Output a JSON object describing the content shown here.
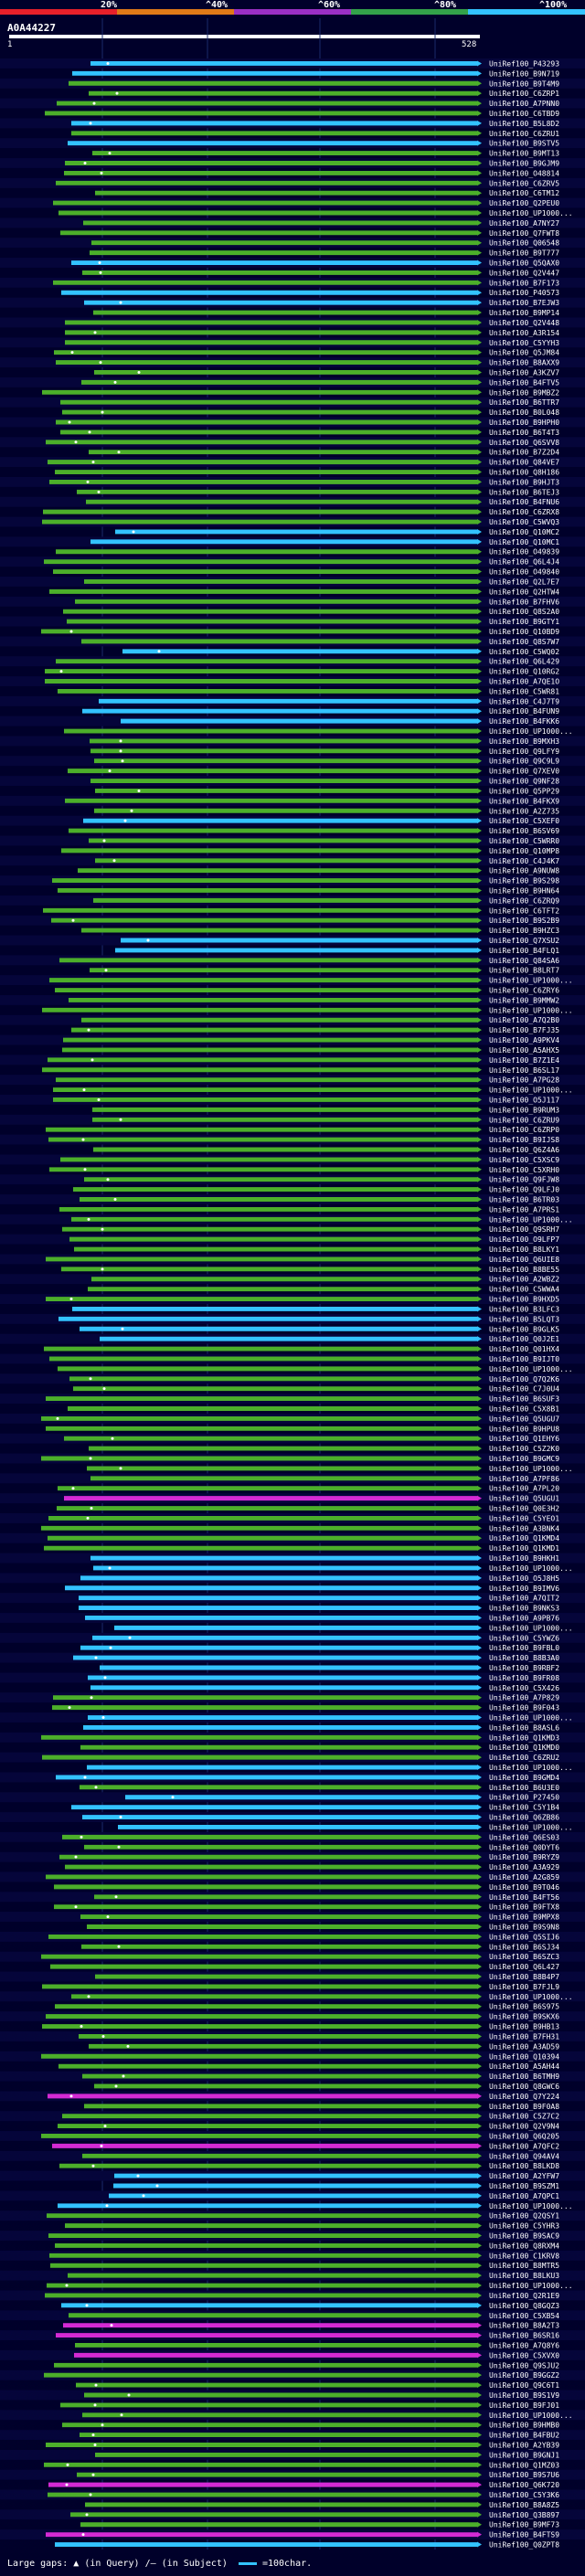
{
  "scale": {
    "labels": [
      "20%",
      "^40%",
      "^60%",
      "^80%",
      "^100%"
    ],
    "colors": [
      "#e8202a",
      "#e07a18",
      "#9a2fc4",
      "#33a24a",
      "#33c3ff"
    ]
  },
  "query": {
    "id": "A0A44227",
    "start": "1",
    "end": "528"
  },
  "colors": {
    "background": "#00002a",
    "cyan": "#33c3ff",
    "green": "#4caf2a",
    "magenta": "#d42ad4",
    "grid": "#1a2a6a"
  },
  "hits": [
    {
      "label": "UniRef100_P43293",
      "color": "cyan"
    },
    {
      "label": "UniRef100_B9N719",
      "color": "cyan"
    },
    {
      "label": "UniRef100_B9T4M9",
      "color": "green"
    },
    {
      "label": "UniRef100_C6ZRP1",
      "color": "green"
    },
    {
      "label": "UniRef100_A7PNN0",
      "color": "green"
    },
    {
      "label": "UniRef100_C6TBD9",
      "color": "green"
    },
    {
      "label": "UniRef100_B5L8D2",
      "color": "cyan"
    },
    {
      "label": "UniRef100_C6ZRU1",
      "color": "green"
    },
    {
      "label": "UniRef100_B9STV5",
      "color": "cyan"
    },
    {
      "label": "UniRef100_B9MT13",
      "color": "green"
    },
    {
      "label": "UniRef100_B9GJM9",
      "color": "green"
    },
    {
      "label": "UniRef100_O48814",
      "color": "green"
    },
    {
      "label": "UniRef100_C6ZRV5",
      "color": "green"
    },
    {
      "label": "UniRef100_C6TM12",
      "color": "green"
    },
    {
      "label": "UniRef100_Q2PEU0",
      "color": "green"
    },
    {
      "label": "UniRef100_UP1000...",
      "color": "green"
    },
    {
      "label": "UniRef100_A7NY27",
      "color": "green"
    },
    {
      "label": "UniRef100_Q7FWT8",
      "color": "green"
    },
    {
      "label": "UniRef100_Q06548",
      "color": "green"
    },
    {
      "label": "UniRef100_B9T777",
      "color": "green"
    },
    {
      "label": "UniRef100_Q5QAX0",
      "color": "cyan"
    },
    {
      "label": "UniRef100_Q2V447",
      "color": "green"
    },
    {
      "label": "UniRef100_B7F173",
      "color": "green"
    },
    {
      "label": "UniRef100_P40573",
      "color": "cyan"
    },
    {
      "label": "UniRef100_B7EJW3",
      "color": "cyan"
    },
    {
      "label": "UniRef100_B9MP14",
      "color": "green"
    },
    {
      "label": "UniRef100_Q2V448",
      "color": "green"
    },
    {
      "label": "UniRef100_A3R154",
      "color": "green"
    },
    {
      "label": "UniRef100_C5YYH3",
      "color": "green"
    },
    {
      "label": "UniRef100_Q5JM84",
      "color": "green"
    },
    {
      "label": "UniRef100_B8AXX9",
      "color": "green"
    },
    {
      "label": "UniRef100_A3KZV7",
      "color": "green"
    },
    {
      "label": "UniRef100_B4FTV5",
      "color": "green"
    },
    {
      "label": "UniRef100_B9MBZ2",
      "color": "green"
    },
    {
      "label": "UniRef100_B6TTR7",
      "color": "green"
    },
    {
      "label": "UniRef100_B0L048",
      "color": "green"
    },
    {
      "label": "UniRef100_B9HPH0",
      "color": "green"
    },
    {
      "label": "UniRef100_B6T4T3",
      "color": "green"
    },
    {
      "label": "UniRef100_Q6SVV8",
      "color": "green"
    },
    {
      "label": "UniRef100_B7Z2D4",
      "color": "green"
    },
    {
      "label": "UniRef100_Q84VE7",
      "color": "green"
    },
    {
      "label": "UniRef100_Q8H186",
      "color": "green"
    },
    {
      "label": "UniRef100_B9HJT3",
      "color": "green"
    },
    {
      "label": "UniRef100_B6TEJ3",
      "color": "green"
    },
    {
      "label": "UniRef100_B4FNU6",
      "color": "green"
    },
    {
      "label": "UniRef100_C6ZRX8",
      "color": "green"
    },
    {
      "label": "UniRef100_C5WVQ3",
      "color": "green"
    },
    {
      "label": "UniRef100_Q10MC2",
      "color": "cyan"
    },
    {
      "label": "UniRef100_Q10MC1",
      "color": "cyan"
    },
    {
      "label": "UniRef100_O49839",
      "color": "green"
    },
    {
      "label": "UniRef100_Q6L4J4",
      "color": "green"
    },
    {
      "label": "UniRef100_O49840",
      "color": "green"
    },
    {
      "label": "UniRef100_Q2L7E7",
      "color": "green"
    },
    {
      "label": "UniRef100_Q2HTW4",
      "color": "green"
    },
    {
      "label": "UniRef100_B7FHV6",
      "color": "green"
    },
    {
      "label": "UniRef100_Q8S2A0",
      "color": "green"
    },
    {
      "label": "UniRef100_B9GTY1",
      "color": "green"
    },
    {
      "label": "UniRef100_Q10BD9",
      "color": "green"
    },
    {
      "label": "UniRef100_Q8S7W7",
      "color": "green"
    },
    {
      "label": "UniRef100_C5WQ02",
      "color": "cyan"
    },
    {
      "label": "UniRef100_Q6L429",
      "color": "green"
    },
    {
      "label": "UniRef100_Q10RG2",
      "color": "green"
    },
    {
      "label": "UniRef100_A7QE1O",
      "color": "green"
    },
    {
      "label": "UniRef100_C5WR81",
      "color": "green"
    },
    {
      "label": "UniRef100_C4J7T9",
      "color": "cyan"
    },
    {
      "label": "UniRef100_B4FUN9",
      "color": "cyan"
    },
    {
      "label": "UniRef100_B4FKK6",
      "color": "cyan"
    },
    {
      "label": "UniRef100_UP1000...",
      "color": "green"
    },
    {
      "label": "UniRef100_B9MXH3",
      "color": "green"
    },
    {
      "label": "UniRef100_Q9LFY9",
      "color": "green"
    },
    {
      "label": "UniRef100_Q9C9L9",
      "color": "green"
    },
    {
      "label": "UniRef100_Q7XEV0",
      "color": "green"
    },
    {
      "label": "UniRef100_Q9NF28",
      "color": "green"
    },
    {
      "label": "UniRef100_Q5PP29",
      "color": "green"
    },
    {
      "label": "UniRef100_B4FKX9",
      "color": "green"
    },
    {
      "label": "UniRef100_A2Z735",
      "color": "green"
    },
    {
      "label": "UniRef100_C5XEF0",
      "color": "cyan"
    },
    {
      "label": "UniRef100_B6SV69",
      "color": "green"
    },
    {
      "label": "UniRef100_C5WRR0",
      "color": "green"
    },
    {
      "label": "UniRef100_Q10MP8",
      "color": "green"
    },
    {
      "label": "UniRef100_C4J4K7",
      "color": "green"
    },
    {
      "label": "UniRef100_A9NUW8",
      "color": "green"
    },
    {
      "label": "UniRef100_B9S298",
      "color": "green"
    },
    {
      "label": "UniRef100_B9HN64",
      "color": "green"
    },
    {
      "label": "UniRef100_C6ZRQ9",
      "color": "green"
    },
    {
      "label": "UniRef100_C6TFT2",
      "color": "green"
    },
    {
      "label": "UniRef100_B9S2B9",
      "color": "green"
    },
    {
      "label": "UniRef100_B9HZC3",
      "color": "green"
    },
    {
      "label": "UniRef100_Q7XSU2",
      "color": "cyan"
    },
    {
      "label": "UniRef100_B4FLQ1",
      "color": "cyan"
    },
    {
      "label": "UniRef100_Q84SA6",
      "color": "green"
    },
    {
      "label": "UniRef100_B8LRT7",
      "color": "green"
    },
    {
      "label": "UniRef100_UP1000...",
      "color": "green"
    },
    {
      "label": "UniRef100_C6ZRY6",
      "color": "green"
    },
    {
      "label": "UniRef100_B9MMW2",
      "color": "green"
    },
    {
      "label": "UniRef100_UP1000...",
      "color": "green"
    },
    {
      "label": "UniRef100_A7Q2B0",
      "color": "green"
    },
    {
      "label": "UniRef100_B7FJ35",
      "color": "green"
    },
    {
      "label": "UniRef100_A9PKV4",
      "color": "green"
    },
    {
      "label": "UniRef100_A5AHX5",
      "color": "green"
    },
    {
      "label": "UniRef100_B7Z1E4",
      "color": "green"
    },
    {
      "label": "UniRef100_B6SL17",
      "color": "green"
    },
    {
      "label": "UniRef100_A7PG28",
      "color": "green"
    },
    {
      "label": "UniRef100_UP1000...",
      "color": "green"
    },
    {
      "label": "UniRef100_O5J117",
      "color": "green"
    },
    {
      "label": "UniRef100_B9RUM3",
      "color": "green"
    },
    {
      "label": "UniRef100_C6ZRU9",
      "color": "green"
    },
    {
      "label": "UniRef100_C6ZRP0",
      "color": "green"
    },
    {
      "label": "UniRef100_B9IJS8",
      "color": "green"
    },
    {
      "label": "UniRef100_Q6Z4A6",
      "color": "green"
    },
    {
      "label": "UniRef100_C5XSC9",
      "color": "green"
    },
    {
      "label": "UniRef100_C5XRH0",
      "color": "green"
    },
    {
      "label": "UniRef100_Q9FJW8",
      "color": "green"
    },
    {
      "label": "UniRef100_Q9LFJ0",
      "color": "green"
    },
    {
      "label": "UniRef100_B6TR03",
      "color": "green"
    },
    {
      "label": "UniRef100_A7PRS1",
      "color": "green"
    },
    {
      "label": "UniRef100_UP1000...",
      "color": "green"
    },
    {
      "label": "UniRef100_Q9SRH7",
      "color": "green"
    },
    {
      "label": "UniRef100_O9LFP7",
      "color": "green"
    },
    {
      "label": "UniRef100_B8LKY1",
      "color": "green"
    },
    {
      "label": "UniRef100_Q6UIE8",
      "color": "green"
    },
    {
      "label": "UniRef100_B8BE55",
      "color": "green"
    },
    {
      "label": "UniRef100_A2WBZ2",
      "color": "green"
    },
    {
      "label": "UniRef100_C5WWA4",
      "color": "green"
    },
    {
      "label": "UniRef100_B9HXD5",
      "color": "green"
    },
    {
      "label": "UniRef100_B3LFC3",
      "color": "cyan"
    },
    {
      "label": "UniRef100_B5LQT3",
      "color": "cyan"
    },
    {
      "label": "UniRef100_B9GLK5",
      "color": "cyan"
    },
    {
      "label": "UniRef100_Q0J2E1",
      "color": "cyan"
    },
    {
      "label": "UniRef100_Q01HX4",
      "color": "green"
    },
    {
      "label": "UniRef100_B9IJT0",
      "color": "green"
    },
    {
      "label": "UniRef100_UP1000...",
      "color": "green"
    },
    {
      "label": "UniRef100_Q7Q2K6",
      "color": "green"
    },
    {
      "label": "UniRef100_C7J0U4",
      "color": "green"
    },
    {
      "label": "UniRef100_B6SUF3",
      "color": "green"
    },
    {
      "label": "UniRef100_C5X8B1",
      "color": "green"
    },
    {
      "label": "UniRef100_Q5UGU7",
      "color": "green"
    },
    {
      "label": "UniRef100_B9HPU8",
      "color": "green"
    },
    {
      "label": "UniRef100_Q1EHY6",
      "color": "green"
    },
    {
      "label": "UniRef100_C5Z2K0",
      "color": "green"
    },
    {
      "label": "UniRef100_B9GMC9",
      "color": "green"
    },
    {
      "label": "UniRef100_UP1000...",
      "color": "green"
    },
    {
      "label": "UniRef100_A7PF86",
      "color": "green"
    },
    {
      "label": "UniRef100_A7PL20",
      "color": "green"
    },
    {
      "label": "UniRef100_Q5UGU1",
      "color": "magenta"
    },
    {
      "label": "UniRef100_Q0E3H2",
      "color": "green"
    },
    {
      "label": "UniRef100_C5YEO1",
      "color": "green"
    },
    {
      "label": "UniRef100_A3BNK4",
      "color": "green"
    },
    {
      "label": "UniRef100_Q1KMD4",
      "color": "green"
    },
    {
      "label": "UniRef100_Q1KMD1",
      "color": "green"
    },
    {
      "label": "UniRef100_B9HKH1",
      "color": "cyan"
    },
    {
      "label": "UniRef100_UP1000...",
      "color": "cyan"
    },
    {
      "label": "UniRef100_O5J8H5",
      "color": "cyan"
    },
    {
      "label": "UniRef100_B9IMV6",
      "color": "cyan"
    },
    {
      "label": "UniRef100_A7QIT2",
      "color": "cyan"
    },
    {
      "label": "UniRef100_B9NKS3",
      "color": "cyan"
    },
    {
      "label": "UniRef100_A9PB76",
      "color": "cyan"
    },
    {
      "label": "UniRef100_UP1000...",
      "color": "cyan"
    },
    {
      "label": "UniRef100_C5YWZ6",
      "color": "cyan"
    },
    {
      "label": "UniRef100_B9FBL0",
      "color": "cyan"
    },
    {
      "label": "UniRef100_B8B3A0",
      "color": "cyan"
    },
    {
      "label": "UniRef100_B9RBF2",
      "color": "cyan"
    },
    {
      "label": "UniRef100_B9FR08",
      "color": "cyan"
    },
    {
      "label": "UniRef100_C5X426",
      "color": "cyan"
    },
    {
      "label": "UniRef100_A7P829",
      "color": "green"
    },
    {
      "label": "UniRef100_B9F043",
      "color": "green"
    },
    {
      "label": "UniRef100_UP1000...",
      "color": "cyan"
    },
    {
      "label": "UniRef100_B8ASL6",
      "color": "cyan"
    },
    {
      "label": "UniRef100_Q1KMD3",
      "color": "green"
    },
    {
      "label": "UniRef100_Q1KMD0",
      "color": "green"
    },
    {
      "label": "UniRef100_C6ZRU2",
      "color": "green"
    },
    {
      "label": "UniRef100_UP1000...",
      "color": "cyan"
    },
    {
      "label": "UniRef100_B9GMD4",
      "color": "cyan"
    },
    {
      "label": "UniRef100_B6U3E0",
      "color": "green"
    },
    {
      "label": "UniRef100_P27450",
      "color": "cyan"
    },
    {
      "label": "UniRef100_C5Y1B4",
      "color": "cyan"
    },
    {
      "label": "UniRef100_Q6ZB86",
      "color": "cyan"
    },
    {
      "label": "UniRef100_UP1000...",
      "color": "cyan"
    },
    {
      "label": "UniRef100_Q6ES03",
      "color": "green"
    },
    {
      "label": "UniRef100_Q0DYT6",
      "color": "green"
    },
    {
      "label": "UniRef100_B9RYZ9",
      "color": "green"
    },
    {
      "label": "UniRef100_A3A929",
      "color": "green"
    },
    {
      "label": "UniRef100_A2G859",
      "color": "green"
    },
    {
      "label": "UniRef100_B9T046",
      "color": "green"
    },
    {
      "label": "UniRef100_B4FT56",
      "color": "green"
    },
    {
      "label": "UniRef100_B9FTX8",
      "color": "green"
    },
    {
      "label": "UniRef100_B9MPX8",
      "color": "green"
    },
    {
      "label": "UniRef100_B9S9N8",
      "color": "green"
    },
    {
      "label": "UniRef100_Q5SIJ6",
      "color": "green"
    },
    {
      "label": "UniRef100_B6SJ34",
      "color": "green"
    },
    {
      "label": "UniRef100_B6SZC3",
      "color": "green"
    },
    {
      "label": "UniRef100_Q6L427",
      "color": "green"
    },
    {
      "label": "UniRef100_B8B4P7",
      "color": "green"
    },
    {
      "label": "UniRef100_B7FJL9",
      "color": "green"
    },
    {
      "label": "UniRef100_UP1000...",
      "color": "green"
    },
    {
      "label": "UniRef100_B6S975",
      "color": "green"
    },
    {
      "label": "UniRef100_B9SKX6",
      "color": "green"
    },
    {
      "label": "UniRef100_B9HB13",
      "color": "green"
    },
    {
      "label": "UniRef100_B7FH31",
      "color": "green"
    },
    {
      "label": "UniRef100_A3AD59",
      "color": "green"
    },
    {
      "label": "UniRef100_Q10394",
      "color": "green"
    },
    {
      "label": "UniRef100_A5AH44",
      "color": "green"
    },
    {
      "label": "UniRef100_B6TMH9",
      "color": "green"
    },
    {
      "label": "UniRef100_Q8GWC6",
      "color": "green"
    },
    {
      "label": "UniRef100_Q7Y224",
      "color": "magenta"
    },
    {
      "label": "UniRef100_B9F0A8",
      "color": "green"
    },
    {
      "label": "UniRef100_C5Z7C2",
      "color": "green"
    },
    {
      "label": "UniRef100_Q2V9N4",
      "color": "green"
    },
    {
      "label": "UniRef100_Q6Q205",
      "color": "green"
    },
    {
      "label": "UniRef100_A7QFC2",
      "color": "magenta"
    },
    {
      "label": "UniRef100_Q94AV4",
      "color": "green"
    },
    {
      "label": "UniRef100_B8LKD8",
      "color": "green"
    },
    {
      "label": "UniRef100_A2YFW7",
      "color": "cyan"
    },
    {
      "label": "UniRef100_B9SZM1",
      "color": "cyan"
    },
    {
      "label": "UniRef100_A7QPC1",
      "color": "cyan"
    },
    {
      "label": "UniRef100_UP1000...",
      "color": "cyan"
    },
    {
      "label": "UniRef100_Q2QSY1",
      "color": "green"
    },
    {
      "label": "UniRef100_C5YHR3",
      "color": "green"
    },
    {
      "label": "UniRef100_B9SAC9",
      "color": "green"
    },
    {
      "label": "UniRef100_Q8RXM4",
      "color": "green"
    },
    {
      "label": "UniRef100_C1KRV8",
      "color": "green"
    },
    {
      "label": "UniRef100_B8MTR5",
      "color": "green"
    },
    {
      "label": "UniRef100_B8LKU3",
      "color": "green"
    },
    {
      "label": "UniRef100_UP1000...",
      "color": "green"
    },
    {
      "label": "UniRef100_Q2R1E9",
      "color": "green"
    },
    {
      "label": "UniRef100_Q8GQZ3",
      "color": "cyan"
    },
    {
      "label": "UniRef100_C5XB54",
      "color": "green"
    },
    {
      "label": "UniRef100_B8A2T3",
      "color": "magenta"
    },
    {
      "label": "UniRef100_B6SR16",
      "color": "magenta"
    },
    {
      "label": "UniRef100_A7Q8Y6",
      "color": "green"
    },
    {
      "label": "UniRef100_C5XVX0",
      "color": "magenta"
    },
    {
      "label": "UniRef100_Q9SJU2",
      "color": "green"
    },
    {
      "label": "UniRef100_B9GGZ2",
      "color": "green"
    },
    {
      "label": "UniRef100_Q9C6T1",
      "color": "green"
    },
    {
      "label": "UniRef100_B9S1V9",
      "color": "green"
    },
    {
      "label": "UniRef100_B9FJ01",
      "color": "green"
    },
    {
      "label": "UniRef100_UP1000...",
      "color": "green"
    },
    {
      "label": "UniRef100_B9HMB0",
      "color": "green"
    },
    {
      "label": "UniRef100_B4FBU2",
      "color": "green"
    },
    {
      "label": "UniRef100_A2YB39",
      "color": "green"
    },
    {
      "label": "UniRef100_B9GNJ1",
      "color": "green"
    },
    {
      "label": "UniRef100_Q1MZ03",
      "color": "green"
    },
    {
      "label": "UniRef100_B9S7U6",
      "color": "green"
    },
    {
      "label": "UniRef100_Q6K720",
      "color": "magenta"
    },
    {
      "label": "UniRef100_C5Y3K6",
      "color": "green"
    },
    {
      "label": "UniRef100_B8A8Z5",
      "color": "green"
    },
    {
      "label": "UniRef100_Q3B897",
      "color": "green"
    },
    {
      "label": "UniRef100_B9MF73",
      "color": "green"
    },
    {
      "label": "UniRef100_B4FTS9",
      "color": "magenta"
    },
    {
      "label": "UniRef100_Q0ZPT8",
      "color": "cyan"
    }
  ],
  "legend": {
    "gaps_label": "Large gaps:",
    "query_glyph": "▲",
    "query_text": "(in Query)",
    "subject_glyph": "/—",
    "subject_text": "(in Subject)",
    "scale_text": "=100char."
  }
}
